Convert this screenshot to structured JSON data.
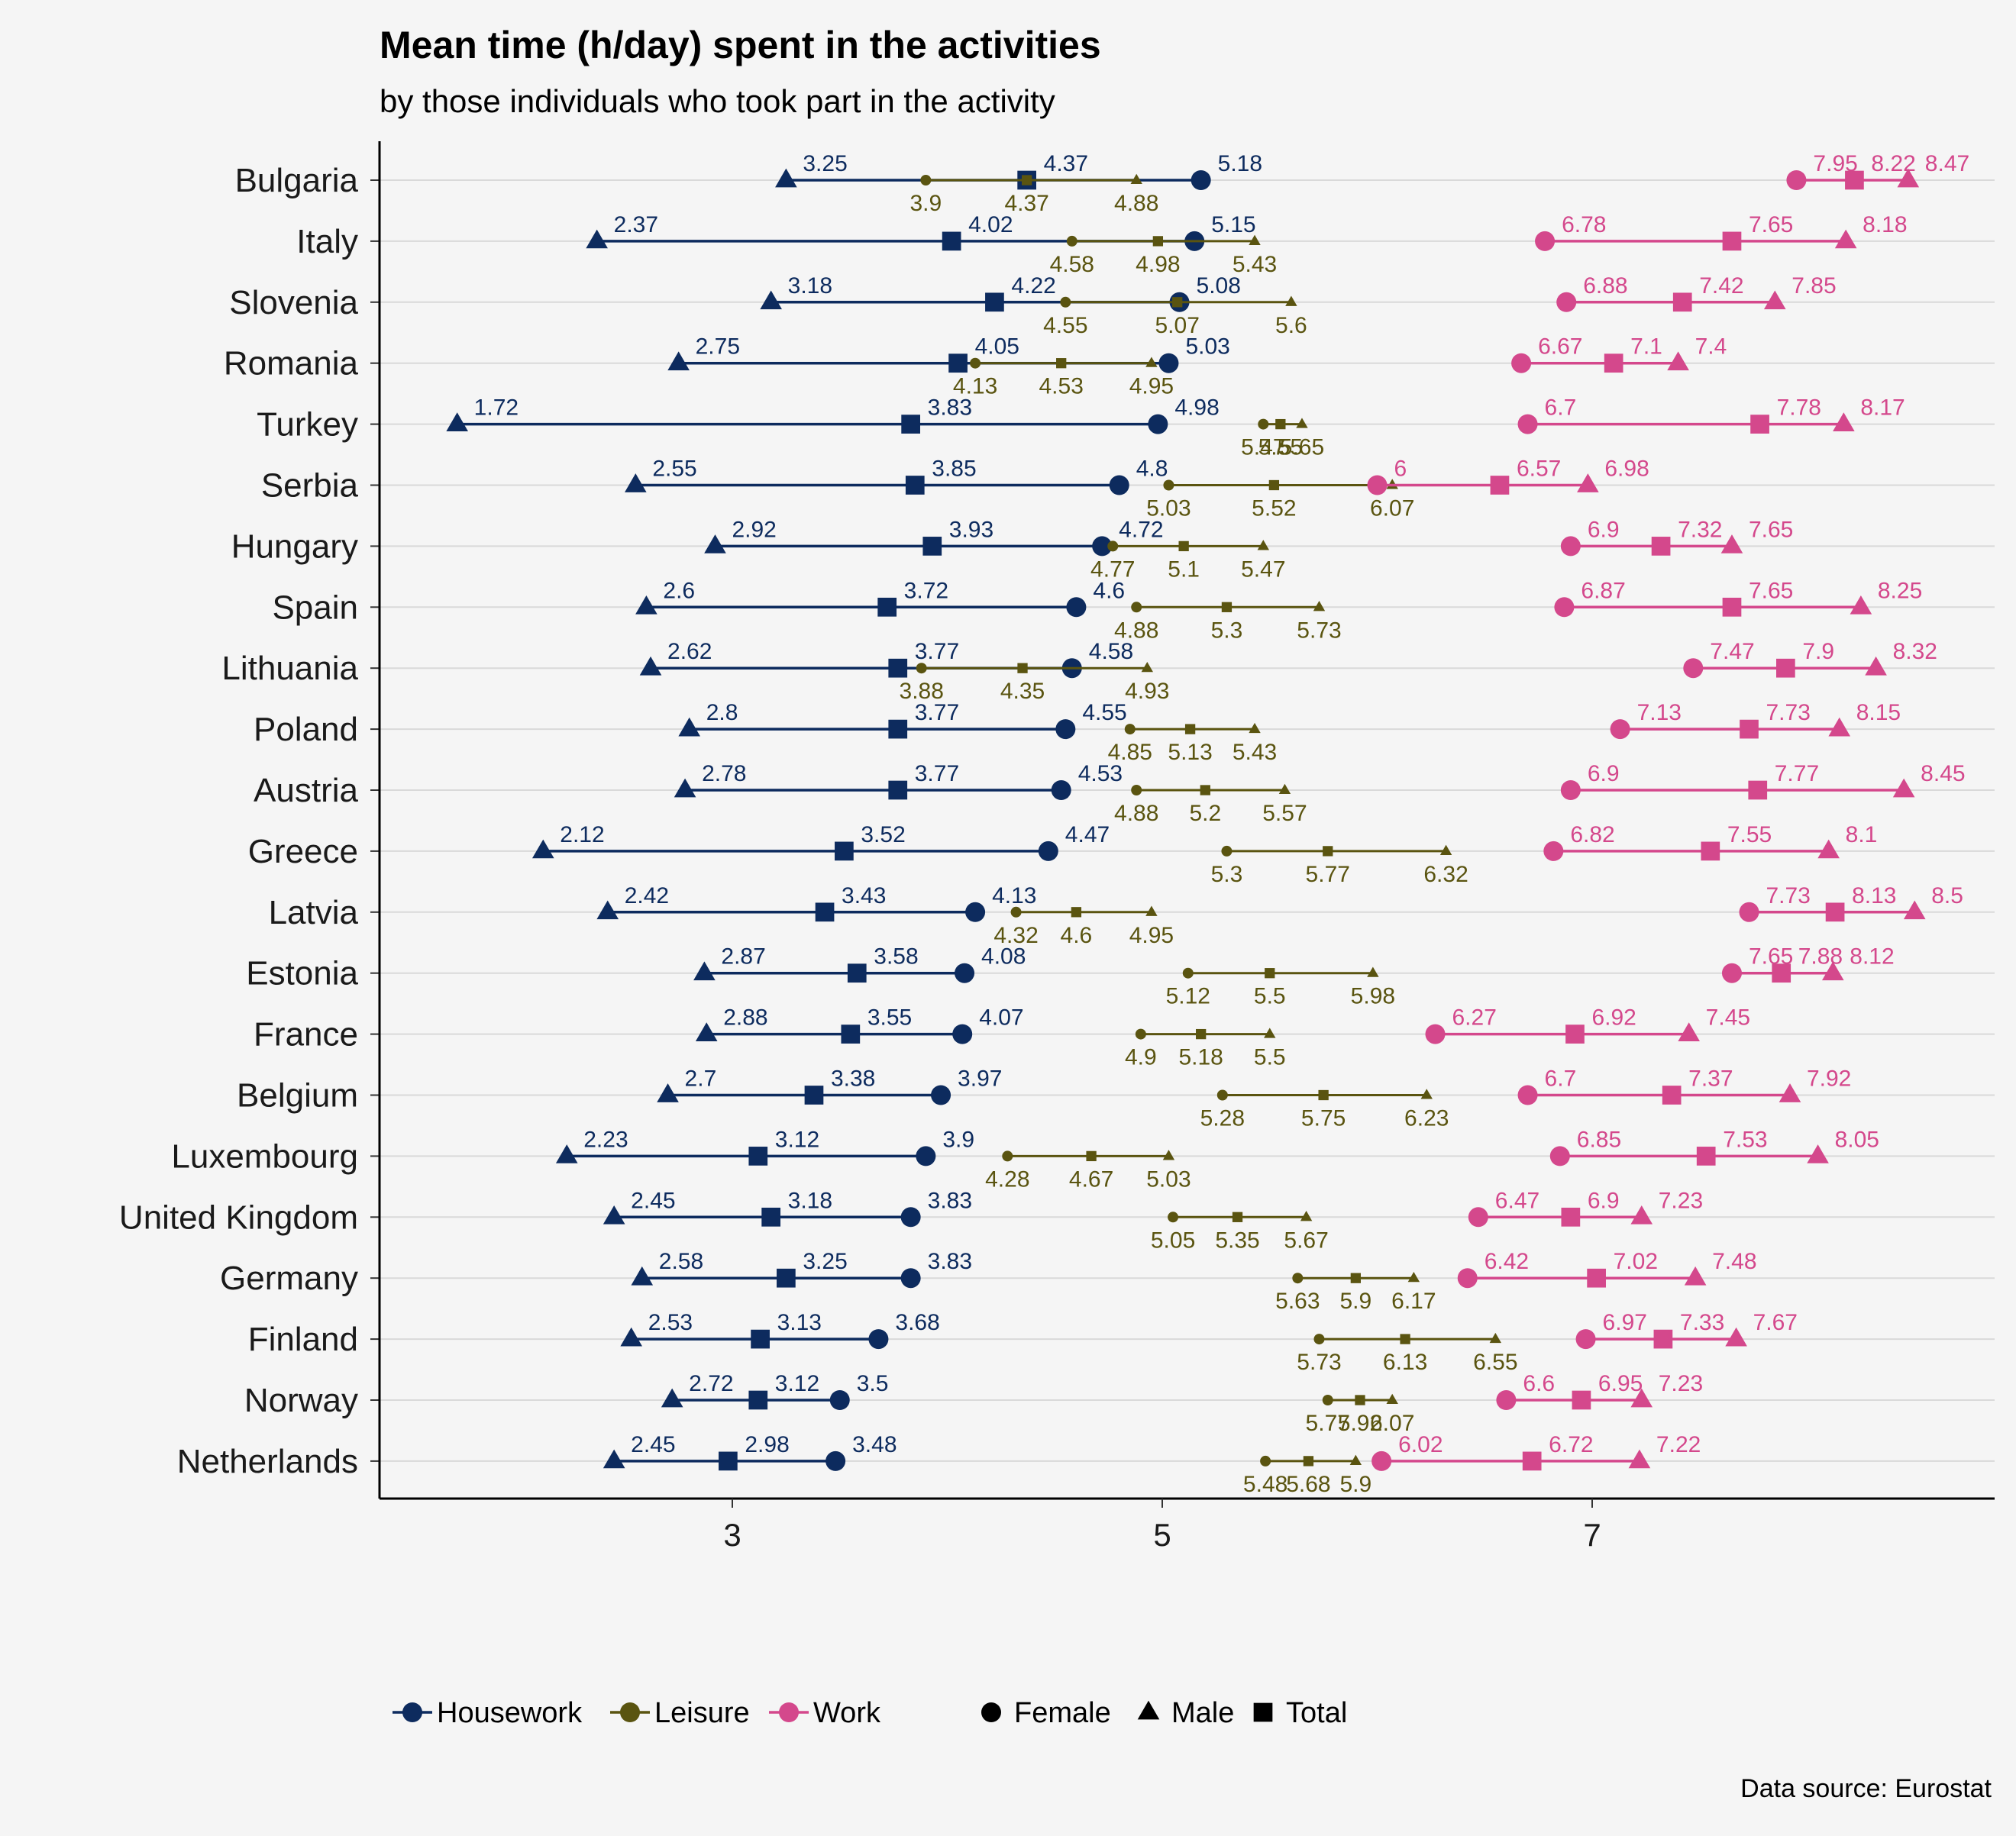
{
  "chart_data": {
    "type": "dumbbell",
    "title": "Mean time (h/day) spent in the activities",
    "subtitle": "by those individuals who took part in the activity",
    "caption": "Data source: Eurostat",
    "x_ticks": [
      3,
      5,
      7
    ],
    "xlim": [
      1.35,
      8.85
    ],
    "grid": "horizontal",
    "legend_position": "bottom",
    "activities": [
      {
        "name": "Housework",
        "color": "#0d2b5e"
      },
      {
        "name": "Leisure",
        "color": "#5a5410"
      },
      {
        "name": "Work",
        "color": "#d4488c"
      }
    ],
    "sexes": [
      {
        "name": "Female",
        "shape": "circle"
      },
      {
        "name": "Male",
        "shape": "triangle"
      },
      {
        "name": "Total",
        "shape": "square"
      }
    ],
    "rows": [
      {
        "country": "Bulgaria",
        "housework": [
          5.18,
          3.25,
          4.37
        ],
        "leisure": [
          3.9,
          4.88,
          4.37
        ],
        "work": [
          7.95,
          8.47,
          8.22
        ]
      },
      {
        "country": "Italy",
        "housework": [
          5.15,
          2.37,
          4.02
        ],
        "leisure": [
          4.58,
          5.43,
          4.98
        ],
        "work": [
          6.78,
          8.18,
          7.65
        ]
      },
      {
        "country": "Slovenia",
        "housework": [
          5.08,
          3.18,
          4.22
        ],
        "leisure": [
          4.55,
          5.6,
          5.07
        ],
        "work": [
          6.88,
          7.85,
          7.42
        ]
      },
      {
        "country": "Romania",
        "housework": [
          5.03,
          2.75,
          4.05
        ],
        "leisure": [
          4.13,
          4.95,
          4.53
        ],
        "work": [
          6.67,
          7.4,
          7.1
        ]
      },
      {
        "country": "Turkey",
        "housework": [
          4.98,
          1.72,
          3.83
        ],
        "leisure": [
          5.47,
          5.65,
          5.55
        ],
        "work": [
          6.7,
          8.17,
          7.78
        ]
      },
      {
        "country": "Serbia",
        "housework": [
          4.8,
          2.55,
          3.85
        ],
        "leisure": [
          5.03,
          6.07,
          5.52
        ],
        "work": [
          6,
          6.98,
          6.57
        ]
      },
      {
        "country": "Hungary",
        "housework": [
          4.72,
          2.92,
          3.93
        ],
        "leisure": [
          4.77,
          5.47,
          5.1
        ],
        "work": [
          6.9,
          7.65,
          7.32
        ]
      },
      {
        "country": "Spain",
        "housework": [
          4.6,
          2.6,
          3.72
        ],
        "leisure": [
          4.88,
          5.73,
          5.3
        ],
        "work": [
          6.87,
          8.25,
          7.65
        ]
      },
      {
        "country": "Lithuania",
        "housework": [
          4.58,
          2.62,
          3.77
        ],
        "leisure": [
          3.88,
          4.93,
          4.35
        ],
        "work": [
          7.47,
          8.32,
          7.9
        ]
      },
      {
        "country": "Poland",
        "housework": [
          4.55,
          2.8,
          3.77
        ],
        "leisure": [
          4.85,
          5.43,
          5.13
        ],
        "work": [
          7.13,
          8.15,
          7.73
        ]
      },
      {
        "country": "Austria",
        "housework": [
          4.53,
          2.78,
          3.77
        ],
        "leisure": [
          4.88,
          5.57,
          5.2
        ],
        "work": [
          6.9,
          8.45,
          7.77
        ]
      },
      {
        "country": "Greece",
        "housework": [
          4.47,
          2.12,
          3.52
        ],
        "leisure": [
          5.3,
          6.32,
          5.77
        ],
        "work": [
          6.82,
          8.1,
          7.55
        ]
      },
      {
        "country": "Latvia",
        "housework": [
          4.13,
          2.42,
          3.43
        ],
        "leisure": [
          4.32,
          4.95,
          4.6
        ],
        "work": [
          7.73,
          8.5,
          8.13
        ]
      },
      {
        "country": "Estonia",
        "housework": [
          4.08,
          2.87,
          3.58
        ],
        "leisure": [
          5.12,
          5.98,
          5.5
        ],
        "work": [
          7.65,
          8.12,
          7.88
        ]
      },
      {
        "country": "France",
        "housework": [
          4.07,
          2.88,
          3.55
        ],
        "leisure": [
          4.9,
          5.5,
          5.18
        ],
        "work": [
          6.27,
          7.45,
          6.92
        ]
      },
      {
        "country": "Belgium",
        "housework": [
          3.97,
          2.7,
          3.38
        ],
        "leisure": [
          5.28,
          6.23,
          5.75
        ],
        "work": [
          6.7,
          7.92,
          7.37
        ]
      },
      {
        "country": "Luxembourg",
        "housework": [
          3.9,
          2.23,
          3.12
        ],
        "leisure": [
          4.28,
          5.03,
          4.67
        ],
        "work": [
          6.85,
          8.05,
          7.53
        ]
      },
      {
        "country": "United Kingdom",
        "housework": [
          3.83,
          2.45,
          3.18
        ],
        "leisure": [
          5.05,
          5.67,
          5.35
        ],
        "work": [
          6.47,
          7.23,
          6.9
        ]
      },
      {
        "country": "Germany",
        "housework": [
          3.83,
          2.58,
          3.25
        ],
        "leisure": [
          5.63,
          6.17,
          5.9
        ],
        "work": [
          6.42,
          7.48,
          7.02
        ]
      },
      {
        "country": "Finland",
        "housework": [
          3.68,
          2.53,
          3.13
        ],
        "leisure": [
          5.73,
          6.55,
          6.13
        ],
        "work": [
          6.97,
          7.67,
          7.33
        ]
      },
      {
        "country": "Norway",
        "housework": [
          3.5,
          2.72,
          3.12
        ],
        "leisure": [
          5.77,
          6.07,
          5.92
        ],
        "work": [
          6.6,
          7.23,
          6.95
        ]
      },
      {
        "country": "Netherlands",
        "housework": [
          3.48,
          2.45,
          2.98
        ],
        "leisure": [
          5.48,
          5.9,
          5.68
        ],
        "work": [
          6.02,
          7.22,
          6.72
        ]
      }
    ]
  }
}
